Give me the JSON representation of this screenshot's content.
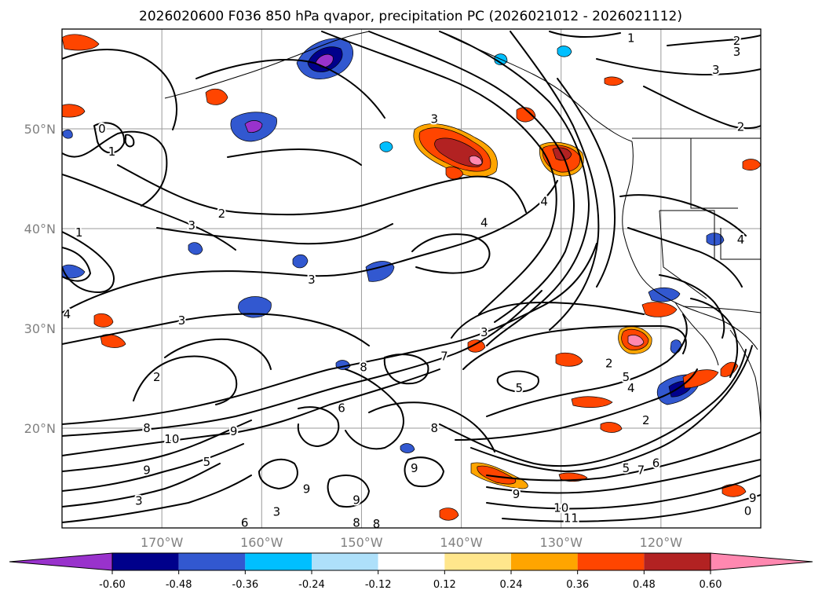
{
  "title": "2026020600 F036 850 hPa qvapor, precipitation PC (2026021012 - 2026021112)",
  "map": {
    "lat_labels": [
      "50°N",
      "40°N",
      "30°N",
      "20°N"
    ],
    "lon_labels": [
      "170°W",
      "160°W",
      "150°W",
      "140°W",
      "130°W",
      "120°W"
    ],
    "lat_values": [
      50,
      40,
      30,
      20
    ],
    "lon_values": [
      -170,
      -160,
      -150,
      -140,
      -130,
      -120
    ],
    "lon_range": [
      -180,
      -110
    ],
    "lat_range": [
      10,
      60
    ],
    "gridlines": true,
    "gridline_color": "#9a9a9a",
    "coastline_color": "#000000"
  },
  "colorbar": {
    "tick_labels": [
      "-0.60",
      "-0.48",
      "-0.36",
      "-0.24",
      "-0.12",
      "0.12",
      "0.24",
      "0.36",
      "0.48",
      "0.60"
    ],
    "levels": [
      -0.6,
      -0.48,
      -0.36,
      -0.24,
      -0.12,
      0.12,
      0.24,
      0.36,
      0.48,
      0.6
    ],
    "colors": [
      "#9932cc",
      "#00008b",
      "#3258d0",
      "#00bfff",
      "#aee0fa",
      "#ffffff",
      "#ffe68c",
      "#ffa500",
      "#ff4500",
      "#b22222",
      "#ff88b0"
    ],
    "extend": "both"
  },
  "contour_labels": [
    {
      "text": "0",
      "lon": -176.0,
      "lat": 50.0
    },
    {
      "text": "1",
      "lon": -175.0,
      "lat": 47.7
    },
    {
      "text": "2",
      "lon": -164.0,
      "lat": 41.5
    },
    {
      "text": "3",
      "lon": -167.0,
      "lat": 40.3
    },
    {
      "text": "1",
      "lon": -178.3,
      "lat": 39.6
    },
    {
      "text": "3",
      "lon": -155.0,
      "lat": 34.9
    },
    {
      "text": "3",
      "lon": -168.0,
      "lat": 30.8
    },
    {
      "text": "4",
      "lon": -179.5,
      "lat": 31.4
    },
    {
      "text": "2",
      "lon": -170.5,
      "lat": 25.1
    },
    {
      "text": "8",
      "lon": -149.8,
      "lat": 26.1
    },
    {
      "text": "7",
      "lon": -141.7,
      "lat": 27.2
    },
    {
      "text": "6",
      "lon": -152.0,
      "lat": 22.0
    },
    {
      "text": "8",
      "lon": -171.5,
      "lat": 20.0
    },
    {
      "text": "10",
      "lon": -169.0,
      "lat": 18.9
    },
    {
      "text": "9",
      "lon": -162.8,
      "lat": 19.7
    },
    {
      "text": "8",
      "lon": -142.7,
      "lat": 20.0
    },
    {
      "text": "5",
      "lon": -165.5,
      "lat": 16.6
    },
    {
      "text": "9",
      "lon": -171.5,
      "lat": 15.8
    },
    {
      "text": "3",
      "lon": -172.3,
      "lat": 12.7
    },
    {
      "text": "9",
      "lon": -150.5,
      "lat": 12.8
    },
    {
      "text": "9",
      "lon": -134.5,
      "lat": 13.4
    },
    {
      "text": "8",
      "lon": -150.5,
      "lat": 10.5
    },
    {
      "text": "8",
      "lon": -148.5,
      "lat": 10.4
    },
    {
      "text": "3",
      "lon": -158.5,
      "lat": 11.6
    },
    {
      "text": "6",
      "lon": -161.7,
      "lat": 10.5
    },
    {
      "text": "9",
      "lon": -144.7,
      "lat": 16.0
    },
    {
      "text": "9",
      "lon": -155.5,
      "lat": 13.9
    },
    {
      "text": "3",
      "lon": -142.7,
      "lat": 51.0
    },
    {
      "text": "4",
      "lon": -137.7,
      "lat": 40.6
    },
    {
      "text": "4",
      "lon": -131.7,
      "lat": 42.7
    },
    {
      "text": "3",
      "lon": -137.7,
      "lat": 29.6
    },
    {
      "text": "5",
      "lon": -134.2,
      "lat": 24.0
    },
    {
      "text": "2",
      "lon": -125.2,
      "lat": 26.5
    },
    {
      "text": "5",
      "lon": -123.5,
      "lat": 25.1
    },
    {
      "text": "4",
      "lon": -123.0,
      "lat": 24.0
    },
    {
      "text": "2",
      "lon": -121.5,
      "lat": 20.8
    },
    {
      "text": "5",
      "lon": -123.5,
      "lat": 16.0
    },
    {
      "text": "7",
      "lon": -122.0,
      "lat": 15.8
    },
    {
      "text": "6",
      "lon": -120.5,
      "lat": 16.5
    },
    {
      "text": "10",
      "lon": -130.0,
      "lat": 12.0
    },
    {
      "text": "11",
      "lon": -129.0,
      "lat": 11.0
    },
    {
      "text": "3",
      "lon": -114.5,
      "lat": 55.9
    },
    {
      "text": "2",
      "lon": -112.0,
      "lat": 50.2
    },
    {
      "text": "2",
      "lon": -112.4,
      "lat": 58.8
    },
    {
      "text": "3",
      "lon": -112.4,
      "lat": 57.7
    },
    {
      "text": "1",
      "lon": -123.0,
      "lat": 59.1
    },
    {
      "text": "4",
      "lon": -112.0,
      "lat": 38.9
    },
    {
      "text": "9",
      "lon": -110.8,
      "lat": 13.0
    },
    {
      "text": "0",
      "lon": -111.3,
      "lat": 11.7
    }
  ]
}
